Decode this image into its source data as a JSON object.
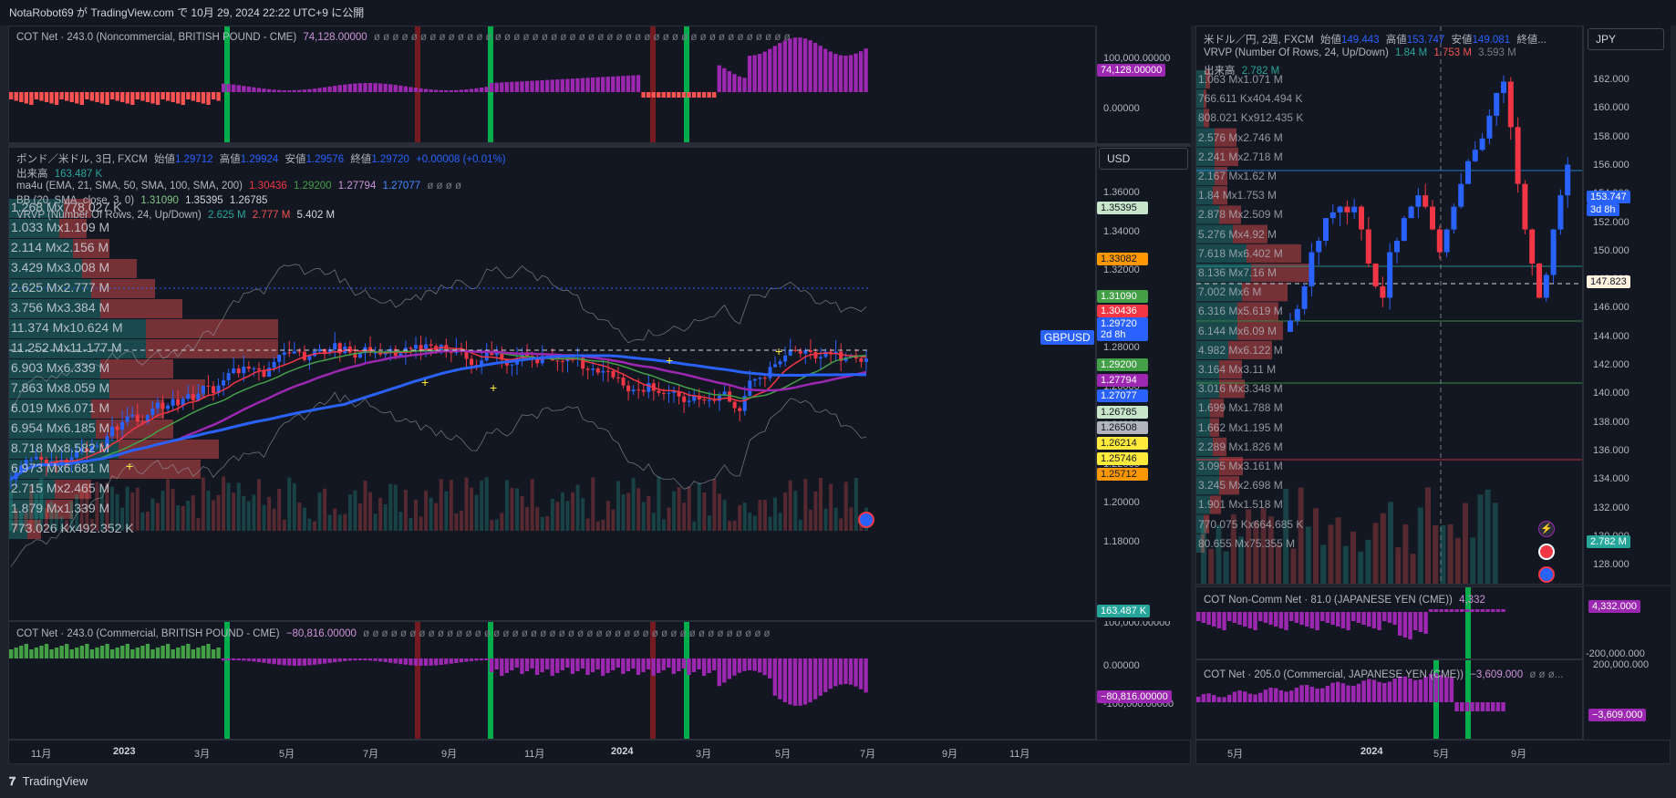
{
  "header": {
    "title": "NotaRobot69 が TradingView.com で 10月 29, 2024 22:22 UTC+9 に公開"
  },
  "footer": {
    "brand": "TradingView",
    "logo_icon": "tradingview-logo-icon"
  },
  "left": {
    "top_pane": {
      "legend": "COT Net · 243.0 (Noncommercial, BRITISH POUND - CME)",
      "value": "74,128.00000",
      "dots": "ø ø ø ø ø ø ø ø ø ø ø ø ø ø ø ø ø ø ø ø ø ø ø ø ø ø ø ø ø ø ø ø ø ø ø ø ø ø ø ø ø ø ø ø ø",
      "ticks": [
        "100,000.00000",
        "0.00000"
      ],
      "tag": "74,128.00000"
    },
    "main_pane": {
      "title": "ポンド／米ドル, 3日, FXCM",
      "ohlc": {
        "open_label": "始値",
        "open": "1.29712",
        "high_label": "高値",
        "high": "1.29924",
        "low_label": "安値",
        "low": "1.29576",
        "close_label": "終値",
        "close": "1.29720",
        "change": "+0.00008 (+0.01%)"
      },
      "volume_label": "出来高",
      "volume_value": "163.487 K",
      "ma_label": "ma4u (EMA, 21, SMA, 50, SMA, 100, SMA, 200)",
      "ma_values": [
        "1.30436",
        "1.29200",
        "1.27794",
        "1.27077",
        "ø ø ø ø"
      ],
      "bb_label": "BB (20, SMA, close, 3, 0)",
      "bb_values": [
        "1.31090",
        "1.35395",
        "1.26785"
      ],
      "vrvp_label": "VRVP (Number Of Rows, 24, Up/Down)",
      "vrvp_values": [
        "2.625 M",
        "2.777 M",
        "5.402 M"
      ],
      "currency": "USD",
      "symbol_tag": "GBPUSD",
      "price_ticks": [
        "1.36000",
        "1.34000",
        "1.32000",
        "1.30000",
        "1.28000",
        "1.26000",
        "1.24000",
        "1.22000",
        "1.20000",
        "1.18000"
      ],
      "price_tags": [
        {
          "text": "1.35395",
          "color": "#c8e6c9",
          "fg": "#131722"
        },
        {
          "text": "1.33082",
          "color": "#ff9800",
          "fg": "#131722"
        },
        {
          "text": "1.31090",
          "color": "#43a047",
          "fg": "#ffffff"
        },
        {
          "text": "1.30436",
          "color": "#f23645",
          "fg": "#ffffff"
        },
        {
          "text": "1.29720",
          "color": "#2962ff",
          "fg": "#ffffff"
        },
        {
          "text": "2d 8h",
          "color": "#2962ff",
          "fg": "#ffffff"
        },
        {
          "text": "1.29200",
          "color": "#43a047",
          "fg": "#ffffff"
        },
        {
          "text": "1.27794",
          "color": "#9c27b0",
          "fg": "#ffffff"
        },
        {
          "text": "1.27077",
          "color": "#2962ff",
          "fg": "#ffffff"
        },
        {
          "text": "1.26785",
          "color": "#c8e6c9",
          "fg": "#131722"
        },
        {
          "text": "1.26508",
          "color": "#b2b5be",
          "fg": "#131722"
        },
        {
          "text": "1.26214",
          "color": "#ffeb3b",
          "fg": "#131722"
        },
        {
          "text": "1.25746",
          "color": "#ffeb3b",
          "fg": "#131722"
        },
        {
          "text": "1.25712",
          "color": "#ff9800",
          "fg": "#131722"
        }
      ],
      "volume_tag": "163.487 K",
      "vp_rows": [
        "1.268 Mx778.027 K",
        "1.033 Mx1.109 M",
        "2.114 Mx2.156 M",
        "3.429 Mx3.008 M",
        "2.625 Mx2.777 M",
        "3.756 Mx3.384 M",
        "11.374 Mx10.624 M",
        "11.252 Mx11.177 M",
        "6.903 Mx6.339 M",
        "7.863 Mx8.059 M",
        "6.019 Mx6.071 M",
        "6.954 Mx6.185 M",
        "8.718 Mx8.582 M",
        "6.973 Mx6.681 M",
        "2.715 Mx2.465 M",
        "1.879 Mx1.339 M",
        "773.026 Kx492.352 K"
      ]
    },
    "bottom_pane": {
      "legend": "COT Net · 243.0 (Commercial, BRITISH POUND - CME)",
      "value": "−80,816.00000",
      "dots": "ø ø ø ø ø ø ø ø ø ø ø ø ø ø ø ø ø ø ø ø ø ø ø ø ø ø ø ø ø ø ø ø ø ø ø ø ø ø ø ø ø ø ø ø",
      "ticks": [
        "100,000.00000",
        "0.00000",
        "-100,000.00000"
      ],
      "tag": "−80,816.00000"
    },
    "time_ticks": [
      {
        "t": "11月",
        "bold": false
      },
      {
        "t": "2023",
        "bold": true
      },
      {
        "t": "3月",
        "bold": false
      },
      {
        "t": "5月",
        "bold": false
      },
      {
        "t": "7月",
        "bold": false
      },
      {
        "t": "9月",
        "bold": false
      },
      {
        "t": "11月",
        "bold": false
      },
      {
        "t": "2024",
        "bold": true
      },
      {
        "t": "3月",
        "bold": false
      },
      {
        "t": "5月",
        "bold": false
      },
      {
        "t": "7月",
        "bold": false
      },
      {
        "t": "9月",
        "bold": false
      },
      {
        "t": "11月",
        "bold": false
      }
    ]
  },
  "right": {
    "main_pane": {
      "title": "米ドル／円, 2週, FXCM",
      "ohlc": {
        "open_label": "始値",
        "open": "149.443",
        "high_label": "高値",
        "high": "153.747",
        "low_label": "安値",
        "low": "149.081",
        "close_label": "終値..."
      },
      "vrvp_label": "VRVP (Number Of Rows, 24, Up/Down)",
      "vrvp_values": [
        "1.84 M",
        "1.753 M",
        "3.593 M"
      ],
      "volume_label": "出来高",
      "volume_value": "2.782 M",
      "currency": "JPY",
      "price_ticks": [
        "162.000",
        "160.000",
        "158.000",
        "156.000",
        "154.000",
        "152.000",
        "150.000",
        "148.000",
        "146.000",
        "144.000",
        "142.000",
        "140.000",
        "138.000",
        "136.000",
        "134.000",
        "132.000",
        "130.000",
        "128.000"
      ],
      "price_tags": [
        {
          "text": "153.747",
          "color": "#2962ff",
          "fg": "#ffffff"
        },
        {
          "text": "3d 8h",
          "color": "#2962ff",
          "fg": "#ffffff"
        },
        {
          "text": "147.823",
          "color": "#fff3e0",
          "fg": "#131722"
        },
        {
          "text": "2.782 M",
          "color": "#26a69a",
          "fg": "#ffffff"
        }
      ],
      "vp_rows": [
        "1.063 Mx1.071 M",
        "766.611 Kx404.494 K",
        "808.021 Kx912.435 K",
        "2.576 Mx2.746 M",
        "2.241 Mx2.718 M",
        "2.167 Mx1.62 M",
        "1.84 Mx1.753 M",
        "2.878 Mx2.509 M",
        "5.276 Mx4.92 M",
        "7.618 Mx6.402 M",
        "8.136 Mx7.16 M",
        "7.002 Mx6 M",
        "6.316 Mx5.619 M",
        "6.144 Mx6.09 M",
        "4.982 Mx6.122 M",
        "3.164 Mx3.11 M",
        "3.016 Mx3.348 M",
        "1.699 Mx1.788 M",
        "1.662 Mx1.195 M",
        "2.289 Mx1.826 M",
        "3.095 Mx3.161 M",
        "3.245 Mx2.698 M",
        "1.901 Mx1.518 M",
        "770.075 Kx664.685 K",
        "80.655 Mx75.355 M"
      ]
    },
    "mid_pane": {
      "legend": "COT Non-Comm Net · 81.0 (JAPANESE YEN (CME))",
      "value": "4,332",
      "ticks": [
        "-200,000.000"
      ],
      "tag": "4,332.000"
    },
    "bottom_pane": {
      "legend": "COT Net · 205.0 (Commercial, JAPANESE YEN (CME))",
      "value": "−3,609.000",
      "dots": "ø ø ø...",
      "ticks": [
        "200,000.000"
      ],
      "tag": "−3,609.000"
    },
    "time_ticks": [
      {
        "t": "5月",
        "bold": false
      },
      {
        "t": "2024",
        "bold": true
      },
      {
        "t": "5月",
        "bold": false
      },
      {
        "t": "9月",
        "bold": false
      }
    ]
  },
  "colors": {
    "up": "#2962ff",
    "down": "#f23645",
    "cot_pos": "#9c27b0",
    "cot_neg": "#ff5252",
    "cot_green": "#43a047",
    "ema": "#f23645",
    "sma50": "#43a047",
    "sma100": "#9c27b0",
    "sma200": "#2962ff"
  }
}
